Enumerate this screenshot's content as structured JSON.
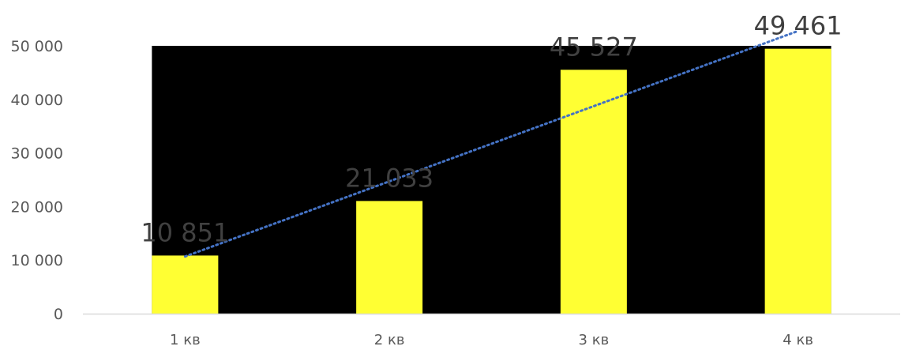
{
  "chart_data": {
    "type": "bar",
    "categories": [
      "1 кв",
      "2 кв",
      "3 кв",
      "4 кв"
    ],
    "values": [
      10851,
      21033,
      45527,
      49461
    ],
    "data_labels": [
      "10 851",
      "21 033",
      "45 527",
      "49 461"
    ],
    "ylim": [
      0,
      50000
    ],
    "yticks": [
      0,
      10000,
      20000,
      30000,
      40000,
      50000
    ],
    "ytick_labels": [
      "0",
      "10 000",
      "20 000",
      "30 000",
      "40 000",
      "50 000"
    ],
    "trendline": "linear",
    "colors": {
      "bar": "#ffff33",
      "plot_background": "#000000",
      "trendline": "#4472c4",
      "axis": "#d9d9d9",
      "tick_text": "#595959",
      "label_text": "#404040"
    }
  }
}
